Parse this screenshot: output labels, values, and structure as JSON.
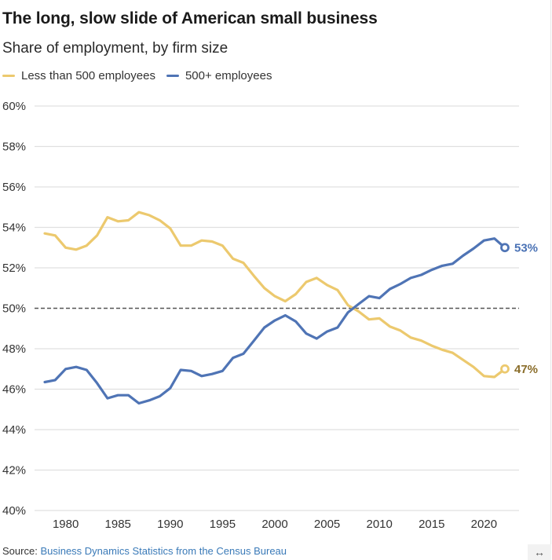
{
  "header": {
    "title": "The long, slow slide of American small business",
    "subtitle": "Share of employment, by firm size"
  },
  "legend": [
    {
      "label": "Less than 500 employees",
      "color": "#ecc96e"
    },
    {
      "label": "500+ employees",
      "color": "#4f74b5"
    }
  ],
  "footer": {
    "source_prefix": "Source:",
    "source_link": "Business Dynamics Statistics from the Census Bureau",
    "expand_icon": "↔"
  },
  "chart_data": {
    "type": "line",
    "title": "The long, slow slide of American small business",
    "subtitle": "Share of employment, by firm size",
    "xlabel": "",
    "ylabel": "",
    "xlim": [
      1978,
      2022
    ],
    "ylim": [
      40,
      60
    ],
    "y_ticks": [
      40,
      42,
      44,
      46,
      48,
      50,
      52,
      54,
      56,
      58,
      60
    ],
    "y_tick_labels": [
      "40%",
      "42%",
      "44%",
      "46%",
      "48%",
      "50%",
      "52%",
      "54%",
      "56%",
      "58%",
      "60%"
    ],
    "x_ticks": [
      1980,
      1985,
      1990,
      1995,
      2000,
      2005,
      2010,
      2015,
      2020
    ],
    "x_tick_labels": [
      "1980",
      "1985",
      "1990",
      "1995",
      "2000",
      "2005",
      "2010",
      "2015",
      "2020"
    ],
    "grid": true,
    "reference_line": {
      "y": 50,
      "style": "dashed"
    },
    "legend_position": "top-left",
    "x": [
      1978,
      1979,
      1980,
      1981,
      1982,
      1983,
      1984,
      1985,
      1986,
      1987,
      1988,
      1989,
      1990,
      1991,
      1992,
      1993,
      1994,
      1995,
      1996,
      1997,
      1998,
      1999,
      2000,
      2001,
      2002,
      2003,
      2004,
      2005,
      2006,
      2007,
      2008,
      2009,
      2010,
      2011,
      2012,
      2013,
      2014,
      2015,
      2016,
      2017,
      2018,
      2019,
      2020,
      2021,
      2022
    ],
    "series": [
      {
        "name": "Less than 500 employees",
        "color": "#ecc96e",
        "label_color": "#8a6d2a",
        "end_label": "47%",
        "values": [
          53.7,
          53.6,
          53.0,
          52.9,
          53.1,
          53.6,
          54.5,
          54.3,
          54.35,
          54.75,
          54.6,
          54.35,
          53.95,
          53.1,
          53.1,
          53.35,
          53.3,
          53.1,
          52.45,
          52.25,
          51.6,
          51.0,
          50.6,
          50.35,
          50.7,
          51.3,
          51.5,
          51.15,
          50.9,
          50.15,
          49.85,
          49.45,
          49.5,
          49.1,
          48.9,
          48.55,
          48.4,
          48.15,
          47.95,
          47.8,
          47.45,
          47.1,
          46.65,
          46.6,
          47.0
        ]
      },
      {
        "name": "500+ employees",
        "color": "#4f74b5",
        "label_color": "#4a72b5",
        "end_label": "53%",
        "values": [
          46.35,
          46.45,
          47.0,
          47.1,
          46.95,
          46.3,
          45.55,
          45.7,
          45.7,
          45.3,
          45.45,
          45.65,
          46.05,
          46.95,
          46.9,
          46.65,
          46.75,
          46.9,
          47.55,
          47.75,
          48.4,
          49.05,
          49.4,
          49.65,
          49.35,
          48.75,
          48.5,
          48.85,
          49.05,
          49.8,
          50.2,
          50.6,
          50.5,
          50.95,
          51.2,
          51.5,
          51.65,
          51.9,
          52.1,
          52.2,
          52.6,
          52.95,
          53.35,
          53.45,
          53.0
        ]
      }
    ]
  }
}
